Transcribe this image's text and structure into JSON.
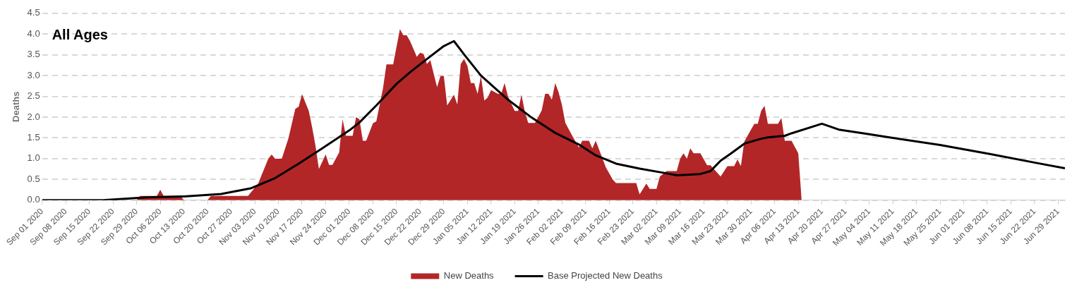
{
  "chart_data": {
    "type": "area",
    "ylabel": "Deaths",
    "annotations": [
      "All Ages"
    ],
    "legend": "bottom",
    "grid": "y",
    "line_style": "solid",
    "marker": "none",
    "xlim": [
      "2020-09-01",
      "2021-07-01"
    ],
    "ylim": [
      0,
      4.5
    ],
    "yticks": [
      {
        "value": 0,
        "label": "0.0"
      },
      {
        "value": 0.5,
        "label": "0.5"
      },
      {
        "value": 1,
        "label": "1.0"
      },
      {
        "value": 1.5,
        "label": "1.5"
      },
      {
        "value": 2,
        "label": "2.0"
      },
      {
        "value": 2.5,
        "label": "2.5"
      },
      {
        "value": 3,
        "label": "3.0"
      },
      {
        "value": 3.5,
        "label": "3.5"
      },
      {
        "value": 4,
        "label": "4.0"
      },
      {
        "value": 4.5,
        "label": "4.5"
      }
    ],
    "xticks": [
      {
        "value": "2020-09-01",
        "label": "Sep 01 2020"
      },
      {
        "value": "2020-09-08",
        "label": "Sep 08 2020"
      },
      {
        "value": "2020-09-15",
        "label": "Sep 15 2020"
      },
      {
        "value": "2020-09-22",
        "label": "Sep 22 2020"
      },
      {
        "value": "2020-09-29",
        "label": "Sep 29 2020"
      },
      {
        "value": "2020-10-06",
        "label": "Oct 06 2020"
      },
      {
        "value": "2020-10-13",
        "label": "Oct 13 2020"
      },
      {
        "value": "2020-10-20",
        "label": "Oct 20 2020"
      },
      {
        "value": "2020-10-27",
        "label": "Oct 27 2020"
      },
      {
        "value": "2020-11-03",
        "label": "Nov 03 2020"
      },
      {
        "value": "2020-11-10",
        "label": "Nov 10 2020"
      },
      {
        "value": "2020-11-17",
        "label": "Nov 17 2020"
      },
      {
        "value": "2020-11-24",
        "label": "Nov 24 2020"
      },
      {
        "value": "2020-12-01",
        "label": "Dec 01 2020"
      },
      {
        "value": "2020-12-08",
        "label": "Dec 08 2020"
      },
      {
        "value": "2020-12-15",
        "label": "Dec 15 2020"
      },
      {
        "value": "2020-12-22",
        "label": "Dec 22 2020"
      },
      {
        "value": "2020-12-29",
        "label": "Dec 29 2020"
      },
      {
        "value": "2021-01-05",
        "label": "Jan 05 2021"
      },
      {
        "value": "2021-01-12",
        "label": "Jan 12 2021"
      },
      {
        "value": "2021-01-19",
        "label": "Jan 19 2021"
      },
      {
        "value": "2021-01-26",
        "label": "Jan 26 2021"
      },
      {
        "value": "2021-02-02",
        "label": "Feb 02 2021"
      },
      {
        "value": "2021-02-09",
        "label": "Feb 09 2021"
      },
      {
        "value": "2021-02-16",
        "label": "Feb 16 2021"
      },
      {
        "value": "2021-02-23",
        "label": "Feb 23 2021"
      },
      {
        "value": "2021-03-02",
        "label": "Mar 02 2021"
      },
      {
        "value": "2021-03-09",
        "label": "Mar 09 2021"
      },
      {
        "value": "2021-03-16",
        "label": "Mar 16 2021"
      },
      {
        "value": "2021-03-23",
        "label": "Mar 23 2021"
      },
      {
        "value": "2021-03-30",
        "label": "Mar 30 2021"
      },
      {
        "value": "2021-04-06",
        "label": "Apr 06 2021"
      },
      {
        "value": "2021-04-13",
        "label": "Apr 13 2021"
      },
      {
        "value": "2021-04-20",
        "label": "Apr 20 2021"
      },
      {
        "value": "2021-04-27",
        "label": "Apr 27 2021"
      },
      {
        "value": "2021-05-04",
        "label": "May 04 2021"
      },
      {
        "value": "2021-05-11",
        "label": "May 11 2021"
      },
      {
        "value": "2021-05-18",
        "label": "May 18 2021"
      },
      {
        "value": "2021-05-25",
        "label": "May 25 2021"
      },
      {
        "value": "2021-06-01",
        "label": "Jun 01 2021"
      },
      {
        "value": "2021-06-08",
        "label": "Jun 08 2021"
      },
      {
        "value": "2021-06-15",
        "label": "Jun 15 2021"
      },
      {
        "value": "2021-06-22",
        "label": "Jun 22 2021"
      },
      {
        "value": "2021-06-29",
        "label": "Jun 29 2021"
      }
    ],
    "series": [
      {
        "name": "New Deaths",
        "type": "area",
        "color": "#b22628",
        "x": [
          "2020-09-01",
          "2020-09-29",
          "2020-09-30",
          "2020-10-05",
          "2020-10-06",
          "2020-10-07",
          "2020-10-12",
          "2020-10-13",
          "2020-10-20",
          "2020-10-21",
          "2020-11-01",
          "2020-11-04",
          "2020-11-07",
          "2020-11-08",
          "2020-11-09",
          "2020-11-11",
          "2020-11-12",
          "2020-11-13",
          "2020-11-15",
          "2020-11-16",
          "2020-11-17",
          "2020-11-19",
          "2020-11-20",
          "2020-11-21",
          "2020-11-22",
          "2020-11-24",
          "2020-11-25",
          "2020-11-26",
          "2020-11-28",
          "2020-11-29",
          "2020-11-30",
          "2020-12-02",
          "2020-12-03",
          "2020-12-04",
          "2020-12-05",
          "2020-12-06",
          "2020-12-08",
          "2020-12-09",
          "2020-12-11",
          "2020-12-12",
          "2020-12-14",
          "2020-12-16",
          "2020-12-17",
          "2020-12-18",
          "2020-12-19",
          "2020-12-21",
          "2020-12-22",
          "2020-12-23",
          "2020-12-24",
          "2020-12-25",
          "2020-12-27",
          "2020-12-28",
          "2020-12-29",
          "2020-12-30",
          "2021-01-01",
          "2021-01-02",
          "2021-01-03",
          "2021-01-04",
          "2021-01-05",
          "2021-01-06",
          "2021-01-07",
          "2021-01-08",
          "2021-01-09",
          "2021-01-10",
          "2021-01-11",
          "2021-01-12",
          "2021-01-14",
          "2021-01-15",
          "2021-01-16",
          "2021-01-17",
          "2021-01-19",
          "2021-01-20",
          "2021-01-21",
          "2021-01-22",
          "2021-01-23",
          "2021-01-25",
          "2021-01-27",
          "2021-01-28",
          "2021-01-29",
          "2021-01-30",
          "2021-01-31",
          "2021-02-01",
          "2021-02-02",
          "2021-02-03",
          "2021-02-05",
          "2021-02-07",
          "2021-02-08",
          "2021-02-10",
          "2021-02-11",
          "2021-02-12",
          "2021-02-13",
          "2021-02-15",
          "2021-02-17",
          "2021-02-18",
          "2021-02-24",
          "2021-02-25",
          "2021-02-27",
          "2021-02-28",
          "2021-03-02",
          "2021-03-03",
          "2021-03-05",
          "2021-03-08",
          "2021-03-09",
          "2021-03-10",
          "2021-03-11",
          "2021-03-12",
          "2021-03-13",
          "2021-03-15",
          "2021-03-17",
          "2021-03-18",
          "2021-03-21",
          "2021-03-23",
          "2021-03-25",
          "2021-03-26",
          "2021-03-27",
          "2021-03-28",
          "2021-03-30",
          "2021-03-31",
          "2021-04-01",
          "2021-04-02",
          "2021-04-03",
          "2021-04-04",
          "2021-04-07",
          "2021-04-08",
          "2021-04-09",
          "2021-04-11",
          "2021-04-13",
          "2021-04-14"
        ],
        "values": [
          0,
          0,
          0.1,
          0.1,
          0.25,
          0.1,
          0.1,
          0,
          0,
          0.1,
          0.1,
          0.4,
          1.0,
          1.1,
          1.0,
          1.0,
          1.25,
          1.5,
          2.2,
          2.25,
          2.55,
          2.15,
          1.75,
          1.3,
          0.75,
          1.1,
          0.85,
          0.85,
          1.15,
          1.95,
          1.55,
          1.55,
          2.0,
          1.95,
          1.43,
          1.43,
          1.85,
          1.9,
          2.7,
          3.27,
          3.27,
          4.12,
          3.97,
          3.97,
          3.83,
          3.45,
          3.55,
          3.52,
          3.28,
          3.37,
          2.72,
          2.99,
          2.99,
          2.28,
          2.54,
          2.3,
          3.28,
          3.4,
          3.23,
          2.82,
          2.82,
          2.56,
          2.99,
          2.4,
          2.47,
          2.65,
          2.56,
          2.56,
          2.82,
          2.5,
          2.15,
          2.15,
          2.54,
          2.13,
          1.86,
          1.86,
          2.16,
          2.56,
          2.56,
          2.42,
          2.82,
          2.6,
          2.29,
          1.86,
          1.56,
          1.27,
          1.43,
          1.43,
          1.25,
          1.43,
          1.22,
          0.79,
          0.5,
          0.41,
          0.41,
          0.14,
          0.4,
          0.27,
          0.27,
          0.57,
          0.7,
          0.7,
          1.0,
          1.13,
          1.0,
          1.25,
          1.13,
          1.13,
          0.84,
          0.84,
          0.57,
          0.82,
          0.82,
          0.98,
          0.82,
          1.41,
          1.7,
          1.84,
          1.84,
          2.15,
          2.27,
          1.84,
          1.84,
          1.98,
          1.43,
          1.43,
          1.13,
          0
        ]
      },
      {
        "name": "Base Projected New Deaths",
        "type": "line",
        "color": "#000000",
        "x": [
          "2020-09-01",
          "2020-09-19",
          "2020-10-02",
          "2020-10-13",
          "2020-10-24",
          "2020-11-02",
          "2020-11-09",
          "2020-11-16",
          "2020-11-23",
          "2020-12-01",
          "2020-12-04",
          "2020-12-09",
          "2020-12-15",
          "2020-12-19",
          "2020-12-24",
          "2020-12-29",
          "2021-01-01",
          "2021-01-04",
          "2021-01-09",
          "2021-01-17",
          "2021-01-24",
          "2021-01-31",
          "2021-02-07",
          "2021-02-12",
          "2021-02-18",
          "2021-02-25",
          "2021-03-04",
          "2021-03-08",
          "2021-03-15",
          "2021-03-18",
          "2021-03-21",
          "2021-03-24",
          "2021-03-28",
          "2021-04-02",
          "2021-04-04",
          "2021-04-09",
          "2021-04-11",
          "2021-04-20",
          "2021-04-25",
          "2021-05-03",
          "2021-05-10",
          "2021-05-25",
          "2021-06-09",
          "2021-06-23",
          "2021-07-01"
        ],
        "values": [
          0.0,
          0.0,
          0.07,
          0.09,
          0.15,
          0.29,
          0.53,
          0.88,
          1.25,
          1.68,
          1.87,
          2.28,
          2.8,
          3.08,
          3.4,
          3.71,
          3.83,
          3.51,
          3.0,
          2.42,
          1.99,
          1.62,
          1.34,
          1.08,
          0.88,
          0.76,
          0.66,
          0.6,
          0.63,
          0.7,
          0.95,
          1.12,
          1.36,
          1.48,
          1.51,
          1.55,
          1.61,
          1.84,
          1.7,
          1.6,
          1.51,
          1.33,
          1.11,
          0.89,
          0.77
        ]
      }
    ]
  }
}
